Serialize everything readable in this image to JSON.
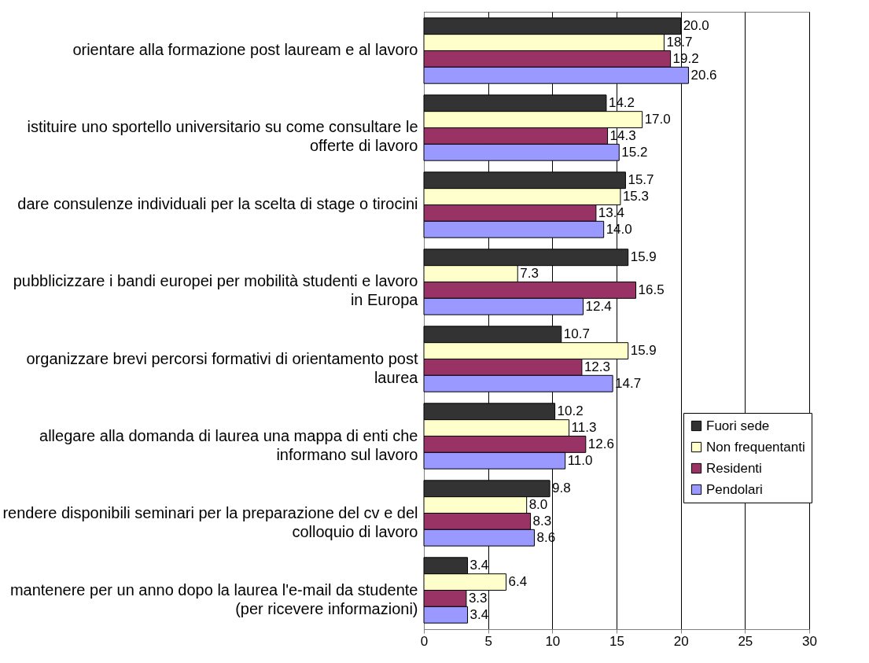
{
  "chart_data": {
    "type": "bar",
    "orientation": "horizontal",
    "categories": [
      "orientare alla formazione post lauream e al lavoro",
      "istituire uno sportello universitario su come consultare le offerte di lavoro",
      "dare consulenze individuali per la scelta di stage o tirocini",
      "pubblicizzare i bandi europei per mobilità studenti e lavoro in Europa",
      "organizzare brevi percorsi formativi di orientamento post laurea",
      "allegare alla domanda di laurea una mappa di enti che informano sul lavoro",
      "rendere disponibili seminari per la preparazione del cv e del colloquio di lavoro",
      "mantenere per un anno dopo la laurea l'e-mail da studente (per ricevere informazioni)"
    ],
    "series": [
      {
        "name": "Fuori sede",
        "color": "#333333",
        "values": [
          20.0,
          14.2,
          15.7,
          15.9,
          10.7,
          10.2,
          9.8,
          3.4
        ],
        "value_labels": [
          "20.0",
          "14.2",
          "15.7",
          "15.9",
          "10.7",
          "10.2",
          "9.8",
          "3.4"
        ]
      },
      {
        "name": "Non frequentanti",
        "color": "#ffffcc",
        "values": [
          18.7,
          17.0,
          15.3,
          7.3,
          15.9,
          11.3,
          8.0,
          6.4
        ],
        "value_labels": [
          "18.7",
          "17.0",
          "15.3",
          "7.3",
          "15.9",
          "11.3",
          "8.0",
          "6.4"
        ]
      },
      {
        "name": "Residenti",
        "color": "#993366",
        "values": [
          19.2,
          14.3,
          13.4,
          16.5,
          12.3,
          12.6,
          8.3,
          3.3
        ],
        "value_labels": [
          "19.2",
          "14.3",
          "13.4",
          "16.5",
          "12.3",
          "12.6",
          "8.3",
          "3.3"
        ]
      },
      {
        "name": "Pendolari",
        "color": "#9999ff",
        "values": [
          20.6,
          15.2,
          14.0,
          12.4,
          14.7,
          11.0,
          8.6,
          3.4
        ],
        "value_labels": [
          "20.6",
          "15.2",
          "14.0",
          "12.4",
          "14.7",
          "11.0",
          "8.6",
          "3.4"
        ]
      }
    ],
    "xlim": [
      0,
      30
    ],
    "xticks": [
      0,
      5,
      10,
      15,
      20,
      25,
      30
    ],
    "grid": "x",
    "legend": "right"
  }
}
